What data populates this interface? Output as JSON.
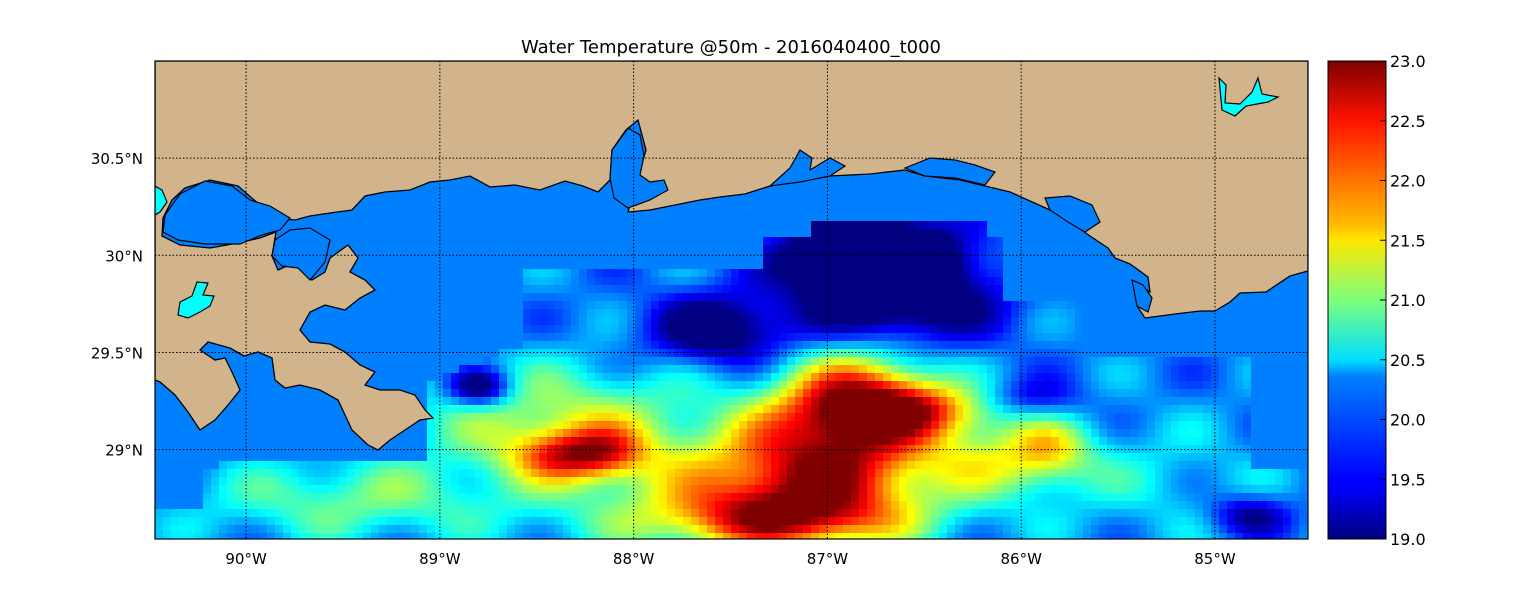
{
  "map": {
    "title": "Water Temperature @50m - 2016040400_t000",
    "variable": "Water Temperature",
    "depth": "50m",
    "run": "2016040400_t000",
    "lon_range": [
      -90.47,
      -84.52
    ],
    "lat_range": [
      28.54,
      31.0
    ],
    "lon_ticks": [
      {
        "value": -90,
        "label": "90°W"
      },
      {
        "value": -89,
        "label": "89°W"
      },
      {
        "value": -88,
        "label": "88°W"
      },
      {
        "value": -87,
        "label": "87°W"
      },
      {
        "value": -86,
        "label": "86°W"
      },
      {
        "value": -85,
        "label": "85°W"
      }
    ],
    "lat_ticks": [
      {
        "value": 30.5,
        "label": "30.5°N"
      },
      {
        "value": 30.0,
        "label": "30°N"
      },
      {
        "value": 29.5,
        "label": "29.5°N"
      },
      {
        "value": 29.0,
        "label": "29°N"
      }
    ],
    "gridlines": true,
    "colors": {
      "land": "#d2b48c",
      "water_no_data": "#0080ff",
      "lakes": "#00ffff",
      "coastline": "#000000"
    }
  },
  "colorbar": {
    "min": 19.0,
    "max": 23.0,
    "colormap": "jet",
    "ticks": [
      "23.0",
      "22.5",
      "22.0",
      "21.5",
      "21.0",
      "20.5",
      "20.0",
      "19.5",
      "19.0"
    ]
  }
}
